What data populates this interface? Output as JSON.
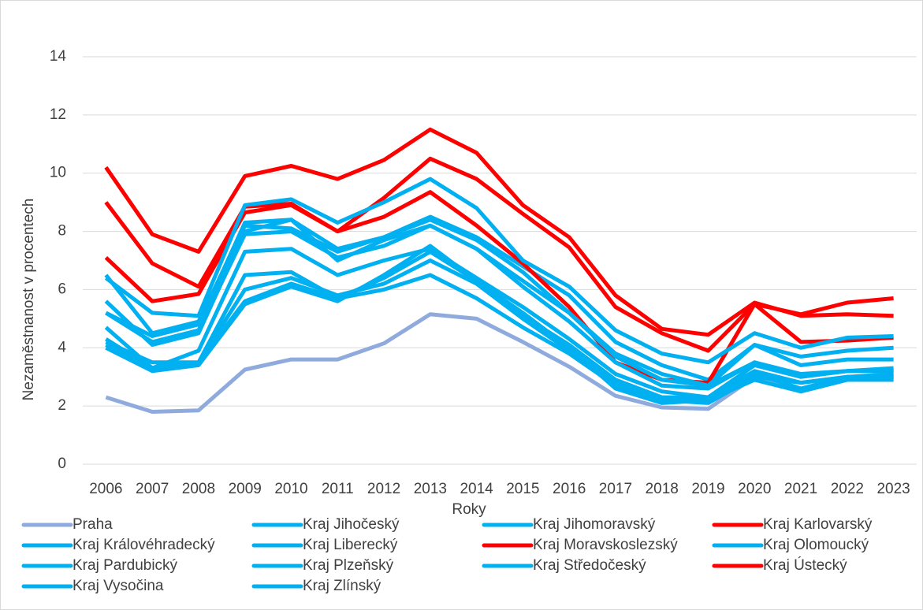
{
  "chart_data": {
    "type": "line",
    "x_label": "Roky",
    "y_label": "Nezaměstnanost v procentech",
    "categories": [
      "2006",
      "2007",
      "2008",
      "2009",
      "2010",
      "2011",
      "2012",
      "2013",
      "2014",
      "2015",
      "2016",
      "2017",
      "2018",
      "2019",
      "2020",
      "2021",
      "2022",
      "2023"
    ],
    "ylim": [
      0,
      14
    ],
    "yticks": [
      0,
      2,
      4,
      6,
      8,
      10,
      12,
      14
    ],
    "grid": true,
    "legend": "bottom",
    "series": [
      {
        "name": "Praha",
        "color": "#8faadc",
        "values": [
          2.3,
          1.8,
          1.85,
          3.25,
          3.6,
          3.6,
          4.15,
          5.15,
          5.0,
          4.2,
          3.35,
          2.35,
          1.95,
          1.9,
          3.0,
          2.5,
          2.9,
          2.9
        ]
      },
      {
        "name": "Kraj Jihočeský",
        "color": "#00b0f0",
        "values": [
          4.2,
          3.5,
          3.5,
          5.6,
          6.2,
          5.7,
          6.0,
          6.5,
          5.7,
          4.7,
          3.8,
          2.7,
          2.2,
          2.2,
          2.9,
          2.5,
          2.9,
          2.9
        ]
      },
      {
        "name": "Kraj Jihomoravský",
        "color": "#00b0f0",
        "values": [
          6.5,
          4.5,
          4.9,
          8.2,
          8.1,
          7.3,
          7.8,
          8.5,
          7.8,
          6.8,
          5.8,
          4.2,
          3.4,
          2.9,
          4.1,
          3.7,
          3.9,
          4.0
        ]
      },
      {
        "name": "Kraj Karlovarský",
        "color": "#ff0000",
        "values": [
          7.1,
          5.6,
          5.85,
          8.65,
          8.9,
          8.0,
          8.5,
          9.35,
          8.2,
          6.9,
          5.4,
          3.5,
          2.9,
          2.8,
          5.5,
          4.2,
          4.25,
          4.35
        ]
      },
      {
        "name": "Kraj Královéhradecký",
        "color": "#00b0f0",
        "values": [
          4.1,
          3.3,
          3.5,
          6.0,
          6.4,
          5.8,
          6.2,
          7.0,
          6.2,
          5.0,
          3.9,
          2.8,
          2.2,
          2.1,
          3.0,
          2.8,
          3.0,
          3.0
        ]
      },
      {
        "name": "Kraj Liberecký",
        "color": "#00b0f0",
        "values": [
          5.2,
          4.2,
          4.6,
          7.9,
          8.0,
          7.1,
          7.5,
          8.2,
          7.4,
          6.1,
          4.9,
          3.5,
          2.7,
          2.6,
          3.5,
          3.0,
          3.2,
          3.3
        ]
      },
      {
        "name": "Kraj Moravskoslezský",
        "color": "#ff0000",
        "values": [
          9.0,
          6.9,
          6.1,
          8.85,
          8.95,
          8.0,
          9.15,
          10.5,
          9.8,
          8.6,
          7.45,
          5.4,
          4.5,
          3.9,
          5.5,
          5.15,
          5.55,
          5.7
        ]
      },
      {
        "name": "Kraj Olomoucký",
        "color": "#00b0f0",
        "values": [
          6.4,
          5.2,
          5.1,
          8.9,
          9.1,
          8.3,
          9.0,
          9.8,
          8.8,
          7.0,
          6.1,
          4.6,
          3.8,
          3.5,
          4.5,
          4.0,
          4.35,
          4.4
        ]
      },
      {
        "name": "Kraj Pardubický",
        "color": "#00b0f0",
        "values": [
          4.3,
          3.3,
          3.5,
          6.5,
          6.6,
          5.7,
          6.4,
          7.3,
          6.3,
          5.1,
          4.1,
          2.9,
          2.3,
          2.3,
          3.2,
          2.8,
          3.0,
          3.1
        ]
      },
      {
        "name": "Kraj Plzeňský",
        "color": "#00b0f0",
        "values": [
          4.0,
          3.2,
          3.4,
          5.5,
          6.1,
          5.6,
          6.5,
          7.5,
          6.3,
          5.2,
          4.0,
          2.6,
          2.1,
          2.2,
          3.1,
          2.6,
          3.0,
          3.0
        ]
      },
      {
        "name": "Kraj Středočeský",
        "color": "#00b0f0",
        "values": [
          4.7,
          3.3,
          3.9,
          7.3,
          7.4,
          6.5,
          7.0,
          7.4,
          6.4,
          5.4,
          4.3,
          3.1,
          2.5,
          2.3,
          3.4,
          3.0,
          3.2,
          3.2
        ]
      },
      {
        "name": "Kraj Ústecký",
        "color": "#ff0000",
        "values": [
          10.2,
          7.9,
          7.3,
          9.9,
          10.25,
          9.8,
          10.45,
          11.5,
          10.7,
          8.9,
          7.8,
          5.8,
          4.65,
          4.45,
          5.55,
          5.1,
          5.15,
          5.1
        ]
      },
      {
        "name": "Kraj Vysočina",
        "color": "#00b0f0",
        "values": [
          5.6,
          4.1,
          4.5,
          8.0,
          8.4,
          7.4,
          7.8,
          8.4,
          7.7,
          6.6,
          5.2,
          3.7,
          2.9,
          2.7,
          3.5,
          3.1,
          3.2,
          3.2
        ]
      },
      {
        "name": "Kraj Zlínský",
        "color": "#00b0f0",
        "values": [
          5.2,
          4.4,
          4.8,
          8.3,
          8.4,
          7.0,
          7.7,
          8.2,
          7.4,
          6.3,
          5.2,
          3.8,
          3.1,
          2.7,
          4.1,
          3.4,
          3.6,
          3.6
        ]
      }
    ]
  }
}
